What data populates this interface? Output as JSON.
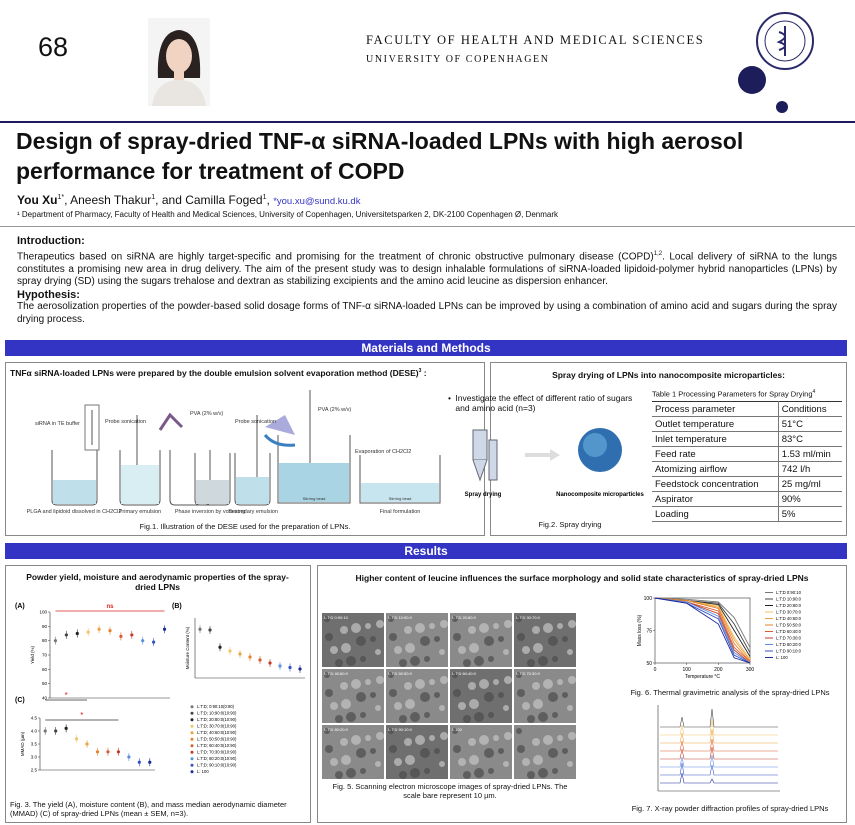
{
  "header": {
    "number": "68",
    "faculty": "FACULTY OF HEALTH AND MEDICAL SCIENCES",
    "university": "UNIVERSITY OF COPENHAGEN"
  },
  "title": "Design of spray-dried TNF-α siRNA-loaded LPNs with high aerosol performance for treatment of COPD",
  "authors": {
    "names": [
      "You Xu",
      "Aneesh Thakur",
      "Camilla Foged"
    ],
    "sups": [
      "1*",
      "1",
      "1"
    ],
    "separators": [
      ",",
      ", and",
      ","
    ],
    "email": "*you.xu@sund.ku.dk"
  },
  "affiliation": "¹ Department of Pharmacy, Faculty of Health and Medical Sciences, University of Copenhagen, Universitetsparken 2, DK-2100 Copenhagen Ø, Denmark",
  "introduction": {
    "heading": "Introduction:",
    "text": "Therapeutics based on siRNA are highly target-specific and promising for the treatment of chronic obstructive pulmonary disease (COPD)",
    "citation": "1,2",
    "text2": ". Local delivery of siRNA to the lungs constitutes a promising new area in drug delivery. The aim of the present study was to design inhalable formulations of siRNA-loaded lipidoid-polymer hybrid nanoparticles (LPNs) by spray drying (SD) using the sugars trehalose and dextran as stabilizing excipients and the amino acid leucine as dispersion enhancer."
  },
  "hypothesis": {
    "heading": "Hypothesis:",
    "text": "The aerosolization properties of the powder-based solid dosage forms of TNF-α siRNA-loaded LPNs can be improved by using a combination of amino acid and sugars during the spray drying process."
  },
  "methods": {
    "heading": "Materials and Methods",
    "left": {
      "title": "TNFα siRNA-loaded LPNs were prepared by the double emulsion solvent evaporation method (DESE)",
      "citation": "3",
      "colon": " :",
      "labels": [
        "siRNA in TE buffer",
        "Probe sonication",
        "PVA (2% w/v)",
        "Probe sonication",
        "PVA (2% w/v)",
        "Evaporation of CH2Cl2",
        "PLGA and lipidoid dissolved in CH2Cl2",
        "Primary emulsion",
        "Phase inversion by vortexing",
        "Secondary emulsion",
        "Final formulation",
        "Stirring bead",
        "Stirring bead"
      ],
      "caption": "Fig.1. Illustration of the DESE used for the preparation of LPNs."
    },
    "right": {
      "title": "Spray drying of LPNs into nanocomposite microparticles:",
      "bullet": "Investigate the effect of different ratio of sugars and amino acid (n=3)",
      "labels": [
        "Spray drying",
        "Nanocomposite microparticles"
      ],
      "caption": "Fig.2. Spray drying",
      "table": {
        "title": "Table 1 Processing Parameters for Spray Drying",
        "citation": "4",
        "rows": [
          [
            "Process parameter",
            "Conditions"
          ],
          [
            "Outlet temperature",
            "51°C"
          ],
          [
            "Inlet temperature",
            "83°C"
          ],
          [
            "Feed rate",
            "1.53 ml/min"
          ],
          [
            "Atomizing airflow",
            "742 l/h"
          ],
          [
            "Feedstock concentration",
            "25 mg/ml"
          ],
          [
            "Aspirator",
            "90%"
          ],
          [
            "Loading",
            "5%"
          ]
        ]
      }
    }
  },
  "results": {
    "heading": "Results",
    "fig3": {
      "title": "Powder yield, moisture and aerodynamic properties of the spray-dried LPNs",
      "colors": [
        "#777777",
        "#444444",
        "#222222",
        "#f3c26b",
        "#eea23c",
        "#e5822c",
        "#db5a2b",
        "#c43a2a",
        "#5b8ee0",
        "#3352c8",
        "#1b2a9c"
      ],
      "legend": [
        "L:T:D; 0:90:10(0:90)",
        "L:T:D; 10:90:0(10:90)",
        "L:T:D; 20:80:0(10:90)",
        "L:T:D; 30:70:0(10:90)",
        "L:T:D; 40:60:0(10:90)",
        "L:T:D; 50:50:0(10:90)",
        "L:T:D; 60:40:0(10:90)",
        "L:T:D; 70:30:0(10:90)",
        "L:T:D; 80:20:0(10:90)",
        "L:T:D; 90:10:0(10:90)",
        "L: 100"
      ],
      "a": {
        "label": "(A)",
        "ylabel": "Yield (%)",
        "ylim": [
          40,
          100
        ],
        "yticks": [
          40,
          50,
          60,
          70,
          80,
          90,
          100
        ],
        "values": [
          80,
          84,
          85,
          86,
          88,
          87,
          83,
          84,
          80,
          79,
          88
        ],
        "annotation": "ns"
      },
      "b": {
        "label": "(B)",
        "ylabel": "Moisture Content (%)",
        "ylim": [
          0,
          8
        ],
        "values": [
          6.5,
          6.4,
          4.1,
          3.6,
          3.2,
          2.8,
          2.4,
          2.0,
          1.6,
          1.4,
          1.2
        ]
      },
      "c": {
        "label": "(C)",
        "ylabel": "MMAD (µm)",
        "ylim": [
          2.5,
          4.5
        ],
        "yticks": [
          {
            "value": 2.5,
            "label": "2.5"
          },
          {
            "value": 3,
            "label": "3.0"
          },
          {
            "value": 3.5,
            "label": "3.5"
          },
          {
            "value": 4,
            "label": "4.0"
          },
          {
            "value": 4.5,
            "label": "4.5"
          }
        ],
        "values": [
          4.0,
          4.0,
          4.1,
          3.7,
          3.5,
          3.2,
          3.2,
          3.2,
          3.0,
          2.8,
          2.8
        ],
        "annotations": [
          "*",
          "*"
        ]
      },
      "caption": "Fig. 3. The yield (A), moisture content (B), and mass median aerodynamic diameter (MMAD) (C) of spray-dried LPNs (mean ± SEM, n=3)."
    },
    "middle": {
      "title": "Higher content of leucine influences the surface morphology and solid state characteristics of spray-dried LPNs",
      "sem_labels": [
        "L:T:D 0:90:10",
        "L:T:D 10:90:0",
        "L:T:D 20:80:0",
        "L:T:D 30:70:0",
        "L:T:D 40:60:0",
        "L:T:D 50:50:0",
        "L:T:D 60:40:0",
        "L:T:D 70:30:0",
        "L:T:D 80:20:0",
        "L:T:D 90:10:0",
        "L 100"
      ],
      "fig5_caption": "Fig. 5. Scanning electron microscope images of spray-dried LPNs. The scale bare represent 10 µm.",
      "fig6": {
        "ylabel": "Mass loss (%)",
        "xlabel": "Temperature °C",
        "xlim": [
          0,
          300
        ],
        "xticks": [
          0,
          100,
          200,
          300
        ],
        "ylim": [
          50,
          100
        ],
        "yticks": [
          50,
          75,
          100
        ],
        "x": [
          0,
          100,
          200,
          250,
          300
        ],
        "series": [
          {
            "name": "L:T:D 0:90:10",
            "color": "#777777",
            "values": [
              100,
              99,
              97,
              85,
              62
            ]
          },
          {
            "name": "L:T:D 10:90:0",
            "color": "#444444",
            "values": [
              100,
              98,
              96,
              80,
              58
            ]
          },
          {
            "name": "L:T:D 20:80:0",
            "color": "#222222",
            "values": [
              100,
              98,
              95,
              75,
              55
            ]
          },
          {
            "name": "L:T:D 30:70:0",
            "color": "#f3c26b",
            "values": [
              100,
              98,
              94,
              70,
              53
            ]
          },
          {
            "name": "L:T:D 40:60:0",
            "color": "#eea23c",
            "values": [
              100,
              98,
              93,
              68,
              52
            ]
          },
          {
            "name": "L:T:D 50:50:0",
            "color": "#e5822c",
            "values": [
              100,
              98,
              92,
              65,
              51
            ]
          },
          {
            "name": "L:T:D 60:40:0",
            "color": "#db5a2b",
            "values": [
              100,
              97,
              90,
              62,
              51
            ]
          },
          {
            "name": "L:T:D 70:30:0",
            "color": "#c43a2a",
            "values": [
              100,
              97,
              88,
              60,
              50
            ]
          },
          {
            "name": "L:T:D 80:20:0",
            "color": "#5b8ee0",
            "values": [
              100,
              97,
              86,
              58,
              50
            ]
          },
          {
            "name": "L:T:D 90:10:0",
            "color": "#3352c8",
            "values": [
              100,
              96,
              84,
              56,
              50
            ]
          },
          {
            "name": "L: 100",
            "color": "#1b2a9c",
            "values": [
              100,
              96,
              80,
              54,
              50
            ]
          }
        ]
      },
      "fig6_caption": "Fig. 6. Thermal gravimetric analysis of the spray-dried LPNs",
      "fig7_caption": "Fig. 7. X-ray powder diffraction profiles of spray-dried LPNs"
    }
  }
}
